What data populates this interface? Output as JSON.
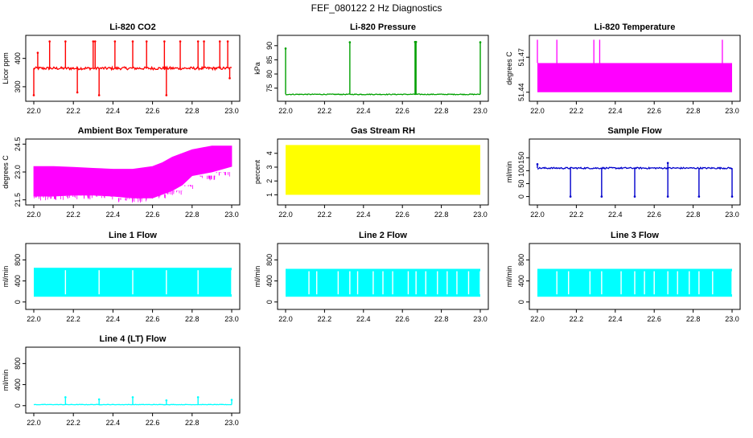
{
  "page": {
    "title": "FEF_080122  2 Hz Diagnostics"
  },
  "chart_data": [
    {
      "type": "line",
      "title": "Li-820 CO2",
      "ylabel": "Licor ppm",
      "color": "#ff0000",
      "xlim": [
        22.0,
        23.0
      ],
      "ylim": [
        260,
        470
      ],
      "x_ticks": [
        "22.0",
        "22.2",
        "22.4",
        "22.6",
        "22.8",
        "23.0"
      ],
      "y_ticks": [
        300,
        400
      ],
      "baseline": 365,
      "noise": 5,
      "spikes": [
        {
          "x": 22.0,
          "y": 270
        },
        {
          "x": 22.02,
          "y": 420
        },
        {
          "x": 22.08,
          "y": 460
        },
        {
          "x": 22.16,
          "y": 460
        },
        {
          "x": 22.22,
          "y": 280
        },
        {
          "x": 22.3,
          "y": 460
        },
        {
          "x": 22.31,
          "y": 460
        },
        {
          "x": 22.33,
          "y": 270
        },
        {
          "x": 22.41,
          "y": 460
        },
        {
          "x": 22.5,
          "y": 460
        },
        {
          "x": 22.57,
          "y": 460
        },
        {
          "x": 22.66,
          "y": 460
        },
        {
          "x": 22.67,
          "y": 270
        },
        {
          "x": 22.74,
          "y": 460
        },
        {
          "x": 22.83,
          "y": 460
        },
        {
          "x": 22.86,
          "y": 460
        },
        {
          "x": 22.94,
          "y": 460
        },
        {
          "x": 22.98,
          "y": 460
        },
        {
          "x": 22.99,
          "y": 330
        }
      ]
    },
    {
      "type": "line",
      "title": "Li-820 Pressure",
      "ylabel": "kPa",
      "color": "#00a000",
      "xlim": [
        22.0,
        23.0
      ],
      "ylim": [
        71.5,
        92.5
      ],
      "x_ticks": [
        "22.0",
        "22.2",
        "22.4",
        "22.6",
        "22.8",
        "23.0"
      ],
      "y_ticks": [
        75,
        80,
        85,
        90
      ],
      "baseline": 72.8,
      "noise": 0.15,
      "spikes": [
        {
          "x": 22.0,
          "y": 89.0
        },
        {
          "x": 22.33,
          "y": 91.2
        },
        {
          "x": 22.665,
          "y": 91.3
        },
        {
          "x": 22.67,
          "y": 91.3
        },
        {
          "x": 23.0,
          "y": 91.2
        }
      ]
    },
    {
      "type": "area",
      "title": "Li-820 Temperature",
      "ylabel": "degrees C",
      "color": "#ff00ff",
      "xlim": [
        22.0,
        23.0
      ],
      "ylim": [
        51.435,
        51.486
      ],
      "x_ticks": [
        "22.0",
        "22.2",
        "22.4",
        "22.6",
        "22.8",
        "23.0"
      ],
      "y_ticks": [
        "51.44",
        "51.47"
      ],
      "band": [
        51.44,
        51.465
      ],
      "spikes": [
        {
          "x": 22.0,
          "y": 51.485
        },
        {
          "x": 22.1,
          "y": 51.485
        },
        {
          "x": 22.29,
          "y": 51.485
        },
        {
          "x": 22.32,
          "y": 51.485
        },
        {
          "x": 22.95,
          "y": 51.485
        }
      ]
    },
    {
      "type": "area",
      "title": "Ambient Box Temperature",
      "ylabel": "degrees C",
      "color": "#ff00ff",
      "xlim": [
        22.0,
        23.0
      ],
      "ylim": [
        21.4,
        24.6
      ],
      "x_ticks": [
        "22.0",
        "22.2",
        "22.4",
        "22.6",
        "22.8",
        "23.0"
      ],
      "y_ticks": [
        "21.5",
        "23.0",
        "24.5"
      ],
      "upper_x": [
        22.0,
        22.1,
        22.2,
        22.3,
        22.4,
        22.5,
        22.6,
        22.65,
        22.7,
        22.75,
        22.8,
        22.9,
        23.0
      ],
      "upper_y": [
        23.3,
        23.3,
        23.25,
        23.2,
        23.15,
        23.15,
        23.3,
        23.5,
        23.8,
        24.0,
        24.2,
        24.4,
        24.4
      ],
      "lower_x": [
        22.0,
        22.1,
        22.2,
        22.3,
        22.4,
        22.5,
        22.6,
        22.65,
        22.7,
        22.75,
        22.8,
        22.9,
        23.0
      ],
      "lower_y": [
        21.7,
        21.7,
        21.75,
        21.75,
        21.7,
        21.6,
        21.6,
        21.8,
        22.0,
        22.3,
        22.8,
        23.0,
        23.3
      ]
    },
    {
      "type": "area",
      "title": "Gas Stream RH",
      "ylabel": "percent",
      "color": "#ffff00",
      "xlim": [
        22.0,
        23.0
      ],
      "ylim": [
        0.5,
        4.8
      ],
      "x_ticks": [
        "22.0",
        "22.2",
        "22.4",
        "22.6",
        "22.8",
        "23.0"
      ],
      "y_ticks": [
        1,
        2,
        3,
        4
      ],
      "band": [
        1.0,
        4.6
      ]
    },
    {
      "type": "line",
      "title": "Sample Flow",
      "ylabel": "ml/min",
      "color": "#0000cc",
      "xlim": [
        22.0,
        23.0
      ],
      "ylim": [
        -20,
        210
      ],
      "x_ticks": [
        "22.0",
        "22.2",
        "22.4",
        "22.6",
        "22.8",
        "23.0"
      ],
      "y_ticks": [
        0,
        50,
        100,
        150
      ],
      "baseline": 110,
      "noise": 3,
      "spikes": [
        {
          "x": 22.0,
          "y": 125
        },
        {
          "x": 22.17,
          "y": 0
        },
        {
          "x": 22.33,
          "y": 0
        },
        {
          "x": 22.5,
          "y": 0
        },
        {
          "x": 22.67,
          "y": 0
        },
        {
          "x": 22.67,
          "y": 130
        },
        {
          "x": 22.83,
          "y": 0
        },
        {
          "x": 23.0,
          "y": 0
        }
      ]
    },
    {
      "type": "area",
      "title": "Line 1 Flow",
      "ylabel": "ml/min",
      "color": "#00ffff",
      "xlim": [
        22.0,
        23.0
      ],
      "ylim": [
        -80,
        1050
      ],
      "x_ticks": [
        "22.0",
        "22.2",
        "22.4",
        "22.6",
        "22.8",
        "23.0"
      ],
      "y_ticks": [
        0,
        400,
        800
      ],
      "band": [
        100,
        650
      ],
      "gaps": [
        22.16,
        22.33,
        22.5,
        22.67,
        22.83,
        23.0
      ]
    },
    {
      "type": "area",
      "title": "Line 2 Flow",
      "ylabel": "ml/min",
      "color": "#00ffff",
      "xlim": [
        22.0,
        23.0
      ],
      "ylim": [
        -80,
        1050
      ],
      "x_ticks": [
        "22.0",
        "22.2",
        "22.4",
        "22.6",
        "22.8",
        "23.0"
      ],
      "y_ticks": [
        0,
        400,
        800
      ],
      "band": [
        100,
        630
      ],
      "gaps": [
        22.12,
        22.16,
        22.27,
        22.33,
        22.37,
        22.45,
        22.5,
        22.55,
        22.63,
        22.67,
        22.72,
        22.78,
        22.83,
        22.88,
        22.94,
        23.0
      ]
    },
    {
      "type": "area",
      "title": "Line 3 Flow",
      "ylabel": "ml/min",
      "color": "#00ffff",
      "xlim": [
        22.0,
        23.0
      ],
      "ylim": [
        -80,
        1050
      ],
      "x_ticks": [
        "22.0",
        "22.2",
        "22.4",
        "22.6",
        "22.8",
        "23.0"
      ],
      "y_ticks": [
        0,
        400,
        800
      ],
      "band": [
        100,
        630
      ],
      "gaps": [
        22.1,
        22.16,
        22.27,
        22.33,
        22.43,
        22.5,
        22.55,
        22.6,
        22.67,
        22.72,
        22.78,
        22.83,
        22.9,
        23.0
      ]
    },
    {
      "type": "line",
      "title": "Line 4 (LT) Flow",
      "ylabel": "ml/min",
      "color": "#00ffff",
      "xlim": [
        22.0,
        23.0
      ],
      "ylim": [
        -80,
        1050
      ],
      "x_ticks": [
        "22.0",
        "22.2",
        "22.4",
        "22.6",
        "22.8",
        "23.0"
      ],
      "y_ticks": [
        0,
        400,
        800
      ],
      "baseline": 20,
      "noise": 4,
      "spikes": [
        {
          "x": 22.16,
          "y": 160
        },
        {
          "x": 22.33,
          "y": 120
        },
        {
          "x": 22.5,
          "y": 160
        },
        {
          "x": 22.67,
          "y": 100
        },
        {
          "x": 22.83,
          "y": 160
        },
        {
          "x": 23.0,
          "y": 110
        }
      ]
    }
  ]
}
